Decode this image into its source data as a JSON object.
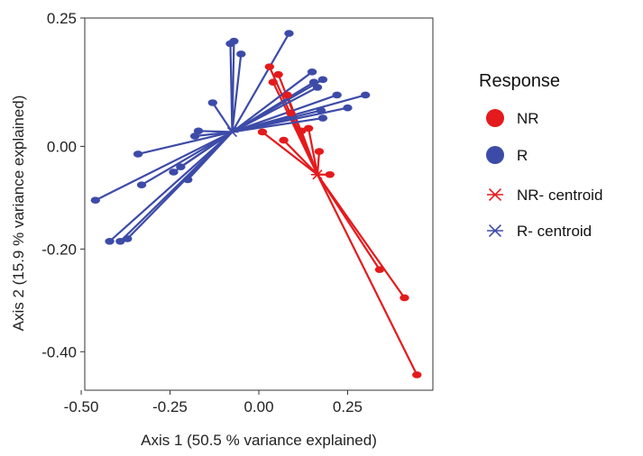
{
  "chart_data": {
    "type": "scatter",
    "title": "",
    "xlabel": "Axis 1 (50.5 % variance explained)",
    "ylabel": "Axis 2 (15.9 % variance explained)",
    "xlim": [
      -0.49,
      0.49
    ],
    "ylim": [
      -0.475,
      0.25
    ],
    "x_ticks": [
      -0.5,
      -0.25,
      0.0,
      0.25
    ],
    "x_tick_labels": [
      "-0.50",
      "-0.25",
      "0.00",
      "0.25"
    ],
    "y_ticks": [
      0.25,
      0.0,
      -0.2,
      -0.4
    ],
    "y_tick_labels": [
      "0.25",
      "0.00",
      "-0.20",
      "-0.40"
    ],
    "grid": false,
    "legend_title": "Response",
    "legend_position": "right",
    "series": [
      {
        "name": "NR",
        "color": "#e41a1c",
        "centroid_label": "NR- centroid",
        "centroid": [
          0.165,
          -0.055
        ],
        "points": [
          [
            0.03,
            0.155
          ],
          [
            0.055,
            0.14
          ],
          [
            0.04,
            0.125
          ],
          [
            0.08,
            0.1
          ],
          [
            0.09,
            0.065
          ],
          [
            0.14,
            0.035
          ],
          [
            0.12,
            0.03
          ],
          [
            0.01,
            0.028
          ],
          [
            0.07,
            0.012
          ],
          [
            0.17,
            -0.01
          ],
          [
            0.2,
            -0.055
          ],
          [
            0.34,
            -0.24
          ],
          [
            0.41,
            -0.295
          ],
          [
            0.445,
            -0.445
          ]
        ]
      },
      {
        "name": "R",
        "color": "#3d4ba8",
        "centroid_label": "R- centroid",
        "centroid": [
          -0.075,
          0.028
        ],
        "points": [
          [
            -0.08,
            0.2
          ],
          [
            -0.07,
            0.205
          ],
          [
            -0.05,
            0.18
          ],
          [
            0.085,
            0.22
          ],
          [
            -0.13,
            0.085
          ],
          [
            -0.18,
            0.02
          ],
          [
            -0.17,
            0.03
          ],
          [
            -0.34,
            -0.015
          ],
          [
            -0.22,
            -0.04
          ],
          [
            -0.24,
            -0.05
          ],
          [
            -0.2,
            -0.065
          ],
          [
            -0.33,
            -0.075
          ],
          [
            -0.46,
            -0.105
          ],
          [
            -0.42,
            -0.185
          ],
          [
            -0.39,
            -0.185
          ],
          [
            -0.37,
            -0.18
          ],
          [
            0.15,
            0.145
          ],
          [
            0.18,
            0.13
          ],
          [
            0.155,
            0.125
          ],
          [
            0.165,
            0.115
          ],
          [
            0.22,
            0.1
          ],
          [
            0.3,
            0.1
          ],
          [
            0.25,
            0.075
          ],
          [
            0.18,
            0.055
          ],
          [
            0.175,
            0.07
          ]
        ]
      }
    ]
  }
}
